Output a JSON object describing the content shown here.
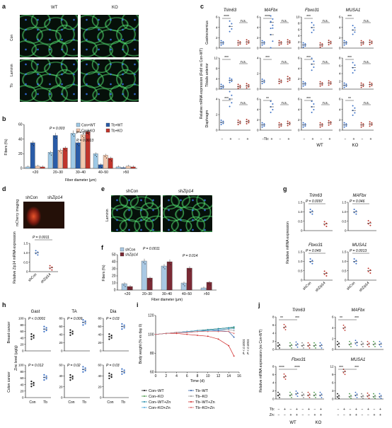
{
  "panel_letters": [
    "a",
    "b",
    "c",
    "d",
    "e",
    "f",
    "g",
    "h",
    "i",
    "j"
  ],
  "a": {
    "col_labels": [
      "WT",
      "KO"
    ],
    "row_labels": [
      "Con",
      "Tb"
    ],
    "side_label": "Laminin"
  },
  "b": {
    "ylabel": "Fibers (%)",
    "xlabel": "Fiber diameter (μm)",
    "legend": [
      "Con+WT",
      "Tb+WT",
      "Con+KO",
      "Tb+KO"
    ],
    "pvals": [
      "P = 0.003",
      "P = 0.02",
      "P = 0.0013"
    ],
    "chart_data": {
      "type": "bar",
      "categories": [
        "<20",
        "20–30",
        "30–40",
        "40–50",
        ">50"
      ],
      "ylim": [
        0,
        60
      ],
      "yticks": [
        "0",
        "20",
        "40",
        "60"
      ],
      "series": [
        {
          "name": "Con+WT",
          "color": "#9ec9e6",
          "values": [
            2,
            22,
            48,
            20,
            2
          ]
        },
        {
          "name": "Tb+WT",
          "color": "#2a5ca8",
          "values": [
            35,
            45,
            35,
            5,
            1
          ]
        },
        {
          "name": "Con+KO",
          "color": "#f2c7ad",
          "values": [
            3,
            25,
            46,
            18,
            3
          ]
        },
        {
          "name": "Tb+KO",
          "color": "#c0352c",
          "values": [
            2,
            28,
            50,
            14,
            2
          ]
        }
      ]
    }
  },
  "c": {
    "genes": [
      "Trim63",
      "MAFbx",
      "Fbxo31",
      "MUSA1"
    ],
    "rows": [
      "Gastrocnemius",
      "Tibialis anterior",
      "Diaphragm"
    ],
    "ylabel": "Relative mRNA expression (Fold vs Con-WT)",
    "tb_label": "Tb:",
    "tb_marks": [
      "−",
      "+",
      "−",
      "+"
    ],
    "groups": [
      "WT",
      "KO"
    ],
    "stars": [
      [
        "****",
        "n.s."
      ],
      [
        "****",
        "n.s."
      ],
      [
        "***",
        "n.s."
      ],
      [
        "***",
        "n.s."
      ],
      [
        "***",
        "n.s."
      ],
      [
        "***",
        "n.s."
      ],
      [
        "***",
        "n.s."
      ],
      [
        "***",
        "n.s."
      ],
      [
        "***",
        "n.s."
      ],
      [
        "**",
        "n.s."
      ],
      [
        "***",
        "n.s."
      ],
      [
        "**",
        "n.s."
      ]
    ],
    "yticks": [
      [
        "0",
        "2",
        "4",
        "6"
      ],
      [
        "0",
        "2",
        "4",
        "6"
      ],
      [
        "0",
        "2",
        "4",
        "6",
        "8",
        "10"
      ],
      [
        "0",
        "2",
        "4",
        "6"
      ],
      [
        "0",
        "4",
        "8",
        "12"
      ],
      [
        "0",
        "2",
        "4"
      ],
      [
        "0",
        "2",
        "4",
        "6"
      ],
      [
        "0",
        "2",
        "4",
        "6",
        "8"
      ],
      [
        "0",
        "2",
        "4"
      ],
      [
        "0",
        "2",
        "4",
        "6"
      ],
      [
        "0",
        "2",
        "4",
        "6"
      ],
      [
        "0",
        "2",
        "4",
        "6"
      ]
    ],
    "chart_data": {
      "type": "scatter",
      "note": "approx means per group: Con-WT, Tb-WT, Con-KO, Tb-KO",
      "means": [
        [
          1,
          4.2,
          1,
          1.2
        ],
        [
          1,
          5,
          1,
          1.2
        ],
        [
          1,
          6.6,
          1,
          1.8
        ],
        [
          1,
          3.5,
          1,
          1.1
        ],
        [
          1,
          3.4,
          1,
          1.3
        ],
        [
          1,
          7,
          1,
          1.3
        ],
        [
          1,
          4.8,
          1,
          1.2
        ],
        [
          1,
          5.5,
          1,
          1.2
        ],
        [
          1,
          4,
          1,
          1.1
        ],
        [
          1,
          4.5,
          1,
          1.3
        ],
        [
          1,
          4.5,
          1,
          1.4
        ],
        [
          1,
          3.8,
          1,
          1.2
        ]
      ]
    }
  },
  "d": {
    "title1": "shCon",
    "title2_pre": "sh",
    "title2_it": "Zip14",
    "side": "mCherry imaging",
    "pval": "P = 0.0011",
    "ylabel": "Relative Zip14 mRNA expression",
    "yticks": [
      "0",
      "0.5",
      "1.0",
      "1.5"
    ],
    "xcats": [
      "shCon",
      "shZip14"
    ],
    "chart_data": {
      "type": "scatter",
      "means": [
        1.0,
        0.2
      ]
    }
  },
  "e": {
    "titles": [
      "shCon",
      "shZip14"
    ],
    "side": "Laminin"
  },
  "f": {
    "ylabel": "Fibers (%)",
    "xlabel": "Fiber diameter (μm)",
    "legend": [
      "shCon",
      "shZip14"
    ],
    "pvals": [
      "P = 0.0011",
      "P = 0.014"
    ],
    "chart_data": {
      "type": "bar",
      "categories": [
        "<20",
        "20–30",
        "30–40",
        "40–50",
        ">50"
      ],
      "ylim": [
        0,
        50
      ],
      "yticks": [
        "0",
        "10",
        "20",
        "30",
        "40",
        "50"
      ],
      "series": [
        {
          "name": "shCon",
          "color": "#a9c8e3",
          "values": [
            9,
            41,
            34,
            10,
            3
          ]
        },
        {
          "name": "shZip14",
          "color": "#7b2a35",
          "values": [
            5,
            17,
            40,
            31,
            11
          ]
        }
      ]
    }
  },
  "g": {
    "genes": [
      "Trim63",
      "MAFbx",
      "Fbxo31",
      "MUSA1"
    ],
    "pvals": [
      "P = 0.0097",
      "P = 0.046",
      "P = 0.049",
      "P = 0.0013"
    ],
    "ylabel": "Relative mRNA expression",
    "xcats": [
      "shCon",
      "shZip14"
    ],
    "yticks": [
      [
        "0",
        "0.5",
        "1.0",
        "1.5"
      ],
      [
        "0",
        "0.5",
        "1.0",
        "1.5"
      ],
      [
        "0",
        "0.5",
        "1.0",
        "1.5"
      ],
      [
        "0",
        "0.5",
        "1.0",
        "1.5"
      ]
    ],
    "chart_data": {
      "type": "scatter",
      "means": [
        [
          1.0,
          0.35
        ],
        [
          1.0,
          0.4
        ],
        [
          1.0,
          0.35
        ],
        [
          1.0,
          0.5
        ]
      ]
    }
  },
  "h": {
    "cols": [
      "Gast",
      "TA",
      "Dia"
    ],
    "rows": [
      "Breast cancer",
      "Colon cancer"
    ],
    "ylabel": "Zinc level (μg/g)",
    "pvals": [
      "P < 0.0001",
      "P = 0.009",
      "P = 0.03",
      "P = 0.012",
      "P = 0.02",
      "P = 0.03"
    ],
    "xcats": [
      "Con",
      "Tb"
    ],
    "yticks": [
      [
        "0",
        "20",
        "40",
        "60",
        "80",
        "100"
      ],
      [
        "0",
        "20",
        "40",
        "60",
        "80"
      ],
      [
        "0",
        "20",
        "40",
        "60",
        "80"
      ],
      [
        "0",
        "20",
        "40",
        "60",
        "80",
        "100"
      ],
      [
        "0",
        "20",
        "40",
        "60"
      ],
      [
        "0",
        "20",
        "40",
        "60"
      ]
    ],
    "chart_data": {
      "type": "scatter",
      "means": [
        [
          44,
          67
        ],
        [
          45,
          70
        ],
        [
          35,
          60
        ],
        [
          42,
          62
        ],
        [
          37,
          52
        ],
        [
          40,
          48
        ]
      ]
    }
  },
  "i": {
    "ylabel": "Body weight (% vs day 0)",
    "xlabel": "Time (d)",
    "pvals": [
      "P < 0.0001",
      "P < 0.0001"
    ],
    "legend": [
      "Con–WT",
      "Tb–WT",
      "Con–KO",
      "Tb–KO",
      "Con–WT+Zn",
      "Tb–WT+Zn",
      "Con–KO+Zn",
      "Tb–KO+Zn"
    ],
    "chart_data": {
      "type": "line",
      "x": [
        0,
        2,
        4,
        6,
        8,
        10,
        12,
        14,
        15
      ],
      "xticks": [
        "0",
        "2",
        "4",
        "6",
        "8",
        "10",
        "12",
        "14",
        "16"
      ],
      "ylim": [
        60,
        120
      ],
      "yticks": [
        "60",
        "80",
        "100",
        "120"
      ],
      "series": [
        {
          "name": "Con–WT",
          "color": "#111111",
          "values": [
            100,
            101,
            102,
            103,
            104,
            105,
            106,
            107,
            107
          ]
        },
        {
          "name": "Tb–WT",
          "color": "#2a5ca8",
          "values": [
            100,
            101,
            102,
            102,
            103,
            104,
            104,
            103,
            97
          ]
        },
        {
          "name": "Con–KO",
          "color": "#4a9a4a",
          "values": [
            100,
            101,
            102,
            103,
            104,
            105,
            106,
            107,
            107
          ]
        },
        {
          "name": "Tb–KO",
          "color": "#999999",
          "values": [
            100,
            101,
            102,
            103,
            103,
            104,
            105,
            105,
            104
          ]
        },
        {
          "name": "Con–WT+Zn",
          "color": "#1c8aa8",
          "values": [
            100,
            101,
            102,
            103,
            104,
            105,
            106,
            107,
            108
          ]
        },
        {
          "name": "Tb–WT+Zn",
          "color": "#d02a2a",
          "values": [
            100,
            101,
            101,
            100,
            99,
            98,
            95,
            88,
            77
          ]
        },
        {
          "name": "Con–KO+Zn",
          "color": "#55aadd",
          "values": [
            100,
            101,
            102,
            103,
            104,
            104,
            105,
            106,
            106
          ]
        },
        {
          "name": "Tb–KO+Zn",
          "color": "#e07070",
          "values": [
            100,
            101,
            102,
            102,
            103,
            103,
            103,
            103,
            101
          ]
        }
      ]
    }
  },
  "j": {
    "genes": [
      "Trim63",
      "MAFbx",
      "Fbxo31",
      "MUSA1"
    ],
    "stars": [
      [
        "**",
        "***"
      ],
      [
        "**",
        "***"
      ],
      [
        "****",
        "****"
      ],
      [
        "***",
        "***"
      ]
    ],
    "ylabel": "Relative mRNA expression (vs Con-WT)",
    "tb_label": "Tb:",
    "zn_label": "Zn:",
    "tb_marks": [
      "−",
      "+",
      "−",
      "+",
      "−",
      "+",
      "−",
      "+"
    ],
    "zn_marks": [
      "−",
      "−",
      "+",
      "+",
      "−",
      "−",
      "+",
      "+"
    ],
    "groups": [
      "WT",
      "KO"
    ],
    "yticks": [
      [
        "0",
        "2",
        "4",
        "6",
        "8"
      ],
      [
        "0",
        "2",
        "4",
        "6"
      ],
      [
        "0",
        "2",
        "4",
        "6",
        "8"
      ],
      [
        "0",
        "3",
        "6",
        "9",
        "12"
      ]
    ],
    "chart_data": {
      "type": "scatter",
      "means": [
        [
          1,
          5.5,
          1,
          1.2,
          1,
          1,
          1,
          1
        ],
        [
          1,
          4,
          1,
          1.2,
          1,
          1,
          1,
          1
        ],
        [
          1,
          5.5,
          1,
          1.3,
          1,
          1,
          1,
          1
        ],
        [
          1,
          10,
          1,
          1.5,
          1,
          1.2,
          1,
          1
        ]
      ]
    }
  }
}
